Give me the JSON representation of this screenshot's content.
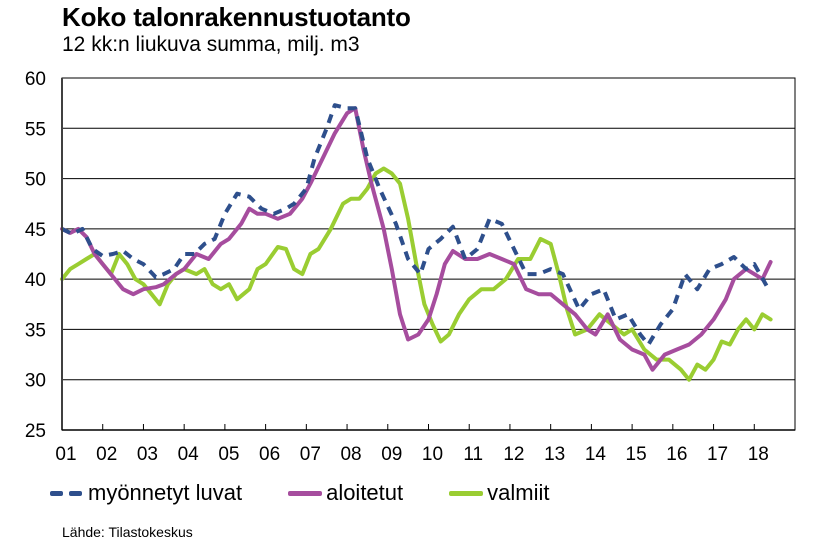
{
  "header": {
    "title": "Koko talonrakennustuotanto",
    "subtitle": "12 kk:n liukuva summa, milj. m3"
  },
  "legend": {
    "items": [
      {
        "label": "myönnetyt luvat",
        "color": "#2E4F8C",
        "style": "dashed"
      },
      {
        "label": "aloitetut",
        "color": "#A64D9E",
        "style": "solid"
      },
      {
        "label": "valmiit",
        "color": "#9ACD32",
        "style": "solid"
      }
    ]
  },
  "source": "Lähde: Tilastokeskus",
  "chart_data": {
    "type": "line",
    "title": "Koko talonrakennustuotanto",
    "subtitle": "12 kk:n liukuva summa, milj. m3",
    "xlabel": "",
    "ylabel": "milj. m3",
    "ylim": [
      25,
      60
    ],
    "yticks": [
      25,
      30,
      35,
      40,
      45,
      50,
      55,
      60
    ],
    "xlim": [
      2001,
      2019
    ],
    "xtick_labels": [
      "01",
      "02",
      "03",
      "04",
      "05",
      "06",
      "07",
      "08",
      "09",
      "10",
      "11",
      "12",
      "13",
      "14",
      "15",
      "16",
      "17",
      "18"
    ],
    "grid": true,
    "legend_position": "bottom",
    "series": [
      {
        "name": "myönnetyt luvat",
        "color": "#2E4F8C",
        "dash": true,
        "x": [
          2001.0,
          2001.25,
          2001.5,
          2001.75,
          2002.0,
          2002.25,
          2002.5,
          2002.75,
          2003.0,
          2003.3,
          2003.5,
          2003.75,
          2004.0,
          2004.25,
          2004.5,
          2004.75,
          2005.0,
          2005.3,
          2005.6,
          2005.9,
          2006.2,
          2006.5,
          2006.7,
          2007.0,
          2007.2,
          2007.5,
          2007.7,
          2008.0,
          2008.2,
          2008.5,
          2008.8,
          2009.2,
          2009.5,
          2009.8,
          2010.0,
          2010.3,
          2010.6,
          2010.9,
          2011.2,
          2011.5,
          2011.8,
          2012.1,
          2012.4,
          2012.7,
          2013.0,
          2013.3,
          2013.7,
          2014.0,
          2014.3,
          2014.6,
          2014.9,
          2015.2,
          2015.4,
          2015.7,
          2016.0,
          2016.3,
          2016.6,
          2016.9,
          2017.2,
          2017.5,
          2017.8,
          2018.0,
          2018.35
        ],
        "values": [
          45.0,
          44.5,
          45.0,
          43.0,
          42.3,
          42.5,
          42.8,
          42.0,
          41.5,
          40.2,
          40.5,
          41.0,
          42.5,
          42.5,
          43.5,
          44.0,
          46.5,
          48.5,
          48.2,
          47.0,
          46.5,
          47.0,
          47.5,
          49.0,
          52.0,
          55.0,
          57.3,
          57.0,
          57.0,
          52.0,
          49.0,
          45.5,
          42.0,
          40.5,
          43.0,
          44.0,
          45.2,
          42.0,
          43.0,
          46.0,
          45.5,
          43.0,
          40.5,
          40.5,
          41.0,
          40.5,
          37.0,
          38.5,
          39.0,
          36.0,
          36.5,
          34.5,
          33.5,
          35.5,
          37.0,
          40.5,
          39.0,
          41.0,
          41.5,
          42.2,
          41.0,
          41.5,
          39.0
        ]
      },
      {
        "name": "aloitetut",
        "color": "#A64D9E",
        "dash": false,
        "x": [
          2001.0,
          2001.2,
          2001.4,
          2001.6,
          2001.8,
          2002.0,
          2002.3,
          2002.5,
          2002.75,
          2003.0,
          2003.3,
          2003.5,
          2003.8,
          2004.0,
          2004.3,
          2004.6,
          2004.9,
          2005.1,
          2005.4,
          2005.6,
          2005.8,
          2006.0,
          2006.3,
          2006.6,
          2006.9,
          2007.1,
          2007.4,
          2007.7,
          2008.0,
          2008.2,
          2008.4,
          2008.6,
          2008.9,
          2009.1,
          2009.3,
          2009.5,
          2009.75,
          2010.0,
          2010.2,
          2010.4,
          2010.6,
          2010.9,
          2011.2,
          2011.5,
          2011.8,
          2012.1,
          2012.4,
          2012.7,
          2013.0,
          2013.3,
          2013.6,
          2013.9,
          2014.1,
          2014.4,
          2014.7,
          2015.0,
          2015.3,
          2015.5,
          2015.8,
          2016.1,
          2016.4,
          2016.7,
          2017.0,
          2017.3,
          2017.5,
          2017.8,
          2018.0,
          2018.2,
          2018.4
        ],
        "values": [
          45.0,
          44.6,
          45.0,
          44.2,
          42.5,
          41.5,
          40.0,
          39.0,
          38.5,
          39.0,
          39.2,
          39.5,
          40.5,
          41.0,
          42.5,
          42.0,
          43.5,
          44.0,
          45.5,
          47.0,
          46.5,
          46.5,
          46.0,
          46.5,
          48.0,
          49.5,
          52.0,
          54.5,
          56.5,
          57.0,
          53.0,
          49.5,
          45.0,
          41.0,
          36.5,
          34.0,
          34.5,
          36.0,
          38.5,
          41.5,
          42.8,
          42.0,
          42.0,
          42.5,
          42.0,
          41.5,
          39.0,
          38.5,
          38.5,
          37.5,
          36.5,
          35.0,
          34.5,
          36.5,
          34.0,
          33.0,
          32.5,
          31.0,
          32.5,
          33.0,
          33.5,
          34.5,
          36.0,
          38.0,
          40.0,
          41.0,
          40.5,
          40.0,
          41.7
        ]
      },
      {
        "name": "valmiit",
        "color": "#9ACD32",
        "dash": false,
        "x": [
          2001.0,
          2001.2,
          2001.4,
          2001.6,
          2001.8,
          2002.0,
          2002.2,
          2002.4,
          2002.6,
          2002.8,
          2003.0,
          2003.2,
          2003.4,
          2003.6,
          2003.8,
          2004.0,
          2004.3,
          2004.5,
          2004.7,
          2004.9,
          2005.1,
          2005.3,
          2005.6,
          2005.8,
          2006.0,
          2006.3,
          2006.5,
          2006.7,
          2006.9,
          2007.1,
          2007.3,
          2007.6,
          2007.9,
          2008.1,
          2008.3,
          2008.5,
          2008.7,
          2008.9,
          2009.1,
          2009.3,
          2009.5,
          2009.7,
          2009.9,
          2010.1,
          2010.3,
          2010.5,
          2010.75,
          2011.0,
          2011.3,
          2011.6,
          2011.9,
          2012.2,
          2012.5,
          2012.75,
          2013.0,
          2013.2,
          2013.4,
          2013.6,
          2013.9,
          2014.2,
          2014.5,
          2014.8,
          2015.0,
          2015.3,
          2015.6,
          2015.9,
          2016.2,
          2016.4,
          2016.6,
          2016.8,
          2017.0,
          2017.2,
          2017.4,
          2017.6,
          2017.8,
          2018.0,
          2018.2,
          2018.4
        ],
        "values": [
          40.0,
          41.0,
          41.5,
          42.0,
          42.5,
          41.5,
          40.5,
          42.5,
          41.5,
          40.0,
          39.5,
          38.5,
          37.5,
          39.5,
          40.5,
          41.0,
          40.5,
          41.0,
          39.5,
          39.0,
          39.5,
          38.0,
          39.0,
          41.0,
          41.5,
          43.2,
          43.0,
          41.0,
          40.5,
          42.5,
          43.0,
          45.0,
          47.5,
          48.0,
          48.0,
          49.0,
          50.5,
          51.0,
          50.5,
          49.5,
          46.0,
          41.5,
          37.5,
          35.5,
          33.8,
          34.5,
          36.5,
          38.0,
          39.0,
          39.0,
          40.0,
          42.0,
          42.0,
          44.0,
          43.5,
          40.5,
          37.0,
          34.5,
          35.0,
          36.5,
          35.5,
          34.5,
          35.0,
          33.0,
          32.0,
          32.0,
          31.0,
          30.0,
          31.5,
          31.0,
          32.0,
          33.8,
          33.5,
          35.0,
          36.0,
          35.0,
          36.5,
          36.0
        ]
      }
    ]
  }
}
